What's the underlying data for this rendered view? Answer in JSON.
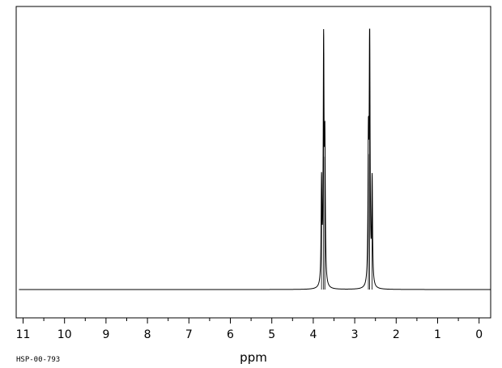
{
  "chart_data": {
    "type": "line",
    "title": "",
    "xlabel": "ppm",
    "ylabel": "",
    "xlim": [
      11,
      0
    ],
    "x_reversed": true,
    "grid": false,
    "legend": "none",
    "x_ticks": [
      11,
      10,
      9,
      8,
      7,
      6,
      5,
      4,
      3,
      2,
      1,
      0
    ],
    "tick_labels": [
      "11",
      "10",
      "9",
      "8",
      "7",
      "6",
      "5",
      "4",
      "3",
      "2",
      "1",
      "0"
    ],
    "minor_tick_step": 0.5,
    "annotation": "HSP-00-793",
    "line_color": "#000000",
    "peaks": [
      {
        "ppm": 3.8,
        "height": 0.39
      },
      {
        "ppm": 3.75,
        "height": 0.91
      },
      {
        "ppm": 3.72,
        "height": 0.51
      },
      {
        "ppm": 2.67,
        "height": 0.52
      },
      {
        "ppm": 2.64,
        "height": 0.99
      },
      {
        "ppm": 2.58,
        "height": 0.4
      }
    ]
  }
}
